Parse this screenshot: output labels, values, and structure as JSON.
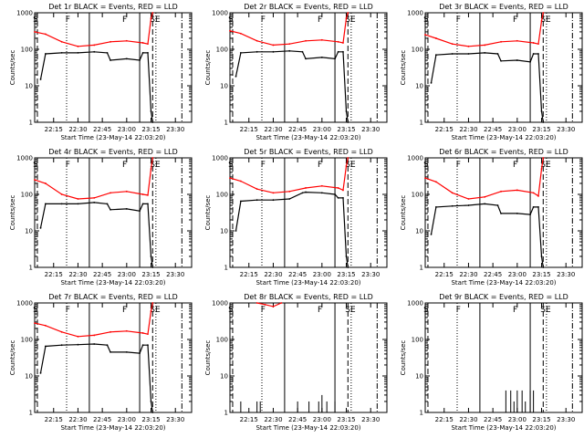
{
  "chart_data": [
    {
      "type": "line",
      "title": "Det 1r BLACK = Events, RED = LLD",
      "xlabel": "Start Time (23-May-14 22:03:20)",
      "ylabel": "Counts/sec",
      "x_ticks": [
        "22:15",
        "22:30",
        "22:45",
        "23:00",
        "23:15",
        "23:30"
      ],
      "y_ticks": [
        "1",
        "10",
        "100",
        "1000"
      ],
      "yscale": "log",
      "ylim": [
        1,
        1000
      ],
      "xlim": [
        "22:03:20",
        "23:40"
      ],
      "markers": [
        "S",
        "F",
        "F",
        "SE"
      ],
      "series": [
        {
          "color": "#ff0000",
          "x": [
            "22:03:20",
            "22:10",
            "22:20",
            "22:30",
            "22:40",
            "22:50",
            "23:00",
            "23:10",
            "23:13",
            "23:15",
            "23:16"
          ],
          "values": [
            300,
            260,
            160,
            120,
            130,
            160,
            170,
            150,
            140,
            700,
            1000
          ]
        },
        {
          "color": "#000000",
          "x": [
            "22:07",
            "22:10",
            "22:20",
            "22:30",
            "22:40",
            "22:48",
            "22:50",
            "23:00",
            "23:08",
            "23:10",
            "23:13",
            "23:15",
            "23:16"
          ],
          "values": [
            15,
            75,
            80,
            80,
            85,
            80,
            50,
            55,
            50,
            80,
            80,
            2,
            1
          ]
        }
      ]
    },
    {
      "type": "line",
      "title": "Det 2r BLACK = Events, RED = LLD",
      "xlabel": "Start Time (23-May-14 22:03:20)",
      "ylabel": "Counts/sec",
      "x_ticks": [
        "22:15",
        "22:30",
        "22:45",
        "23:00",
        "23:15",
        "23:30"
      ],
      "y_ticks": [
        "1",
        "10",
        "100",
        "1000"
      ],
      "yscale": "log",
      "ylim": [
        1,
        1000
      ],
      "xlim": [
        "22:03:20",
        "23:40"
      ],
      "markers": [
        "S",
        "F",
        "F",
        "SE"
      ],
      "series": [
        {
          "color": "#ff0000",
          "x": [
            "22:03:20",
            "22:10",
            "22:20",
            "22:30",
            "22:40",
            "22:50",
            "23:00",
            "23:10",
            "23:13",
            "23:15",
            "23:16"
          ],
          "values": [
            320,
            270,
            170,
            130,
            140,
            170,
            180,
            160,
            150,
            700,
            1000
          ]
        },
        {
          "color": "#000000",
          "x": [
            "22:07",
            "22:10",
            "22:20",
            "22:30",
            "22:40",
            "22:48",
            "22:50",
            "23:00",
            "23:08",
            "23:10",
            "23:13",
            "23:15",
            "23:16"
          ],
          "values": [
            18,
            80,
            85,
            85,
            90,
            85,
            55,
            60,
            55,
            85,
            85,
            2,
            1
          ]
        }
      ]
    },
    {
      "type": "line",
      "title": "Det 3r BLACK = Events, RED = LLD",
      "xlabel": "Start Time (23-May-14 22:03:20)",
      "ylabel": "Counts/sec",
      "x_ticks": [
        "22:15",
        "22:30",
        "22:45",
        "23:00",
        "23:15",
        "23:30"
      ],
      "y_ticks": [
        "1",
        "10",
        "100",
        "1000"
      ],
      "yscale": "log",
      "ylim": [
        1,
        1000
      ],
      "xlim": [
        "22:03:20",
        "23:40"
      ],
      "markers": [
        "S",
        "F",
        "F",
        "SE"
      ],
      "series": [
        {
          "color": "#ff0000",
          "x": [
            "22:03:20",
            "22:10",
            "22:20",
            "22:30",
            "22:40",
            "22:50",
            "23:00",
            "23:10",
            "23:13",
            "23:15",
            "23:16"
          ],
          "values": [
            250,
            200,
            140,
            120,
            130,
            160,
            170,
            150,
            140,
            600,
            1000
          ]
        },
        {
          "color": "#000000",
          "x": [
            "22:07",
            "22:10",
            "22:20",
            "22:30",
            "22:40",
            "22:48",
            "22:50",
            "23:00",
            "23:08",
            "23:10",
            "23:13",
            "23:15",
            "23:16"
          ],
          "values": [
            12,
            70,
            75,
            75,
            80,
            75,
            48,
            50,
            45,
            75,
            75,
            2,
            1
          ]
        }
      ]
    },
    {
      "type": "line",
      "title": "Det 4r BLACK = Events, RED = LLD",
      "xlabel": "Start Time (23-May-14 22:03:20)",
      "ylabel": "Counts/sec",
      "x_ticks": [
        "22:15",
        "22:30",
        "22:45",
        "23:00",
        "23:15",
        "23:30"
      ],
      "y_ticks": [
        "1",
        "10",
        "100",
        "1000"
      ],
      "yscale": "log",
      "ylim": [
        1,
        1000
      ],
      "xlim": [
        "22:03:20",
        "23:40"
      ],
      "markers": [
        "S",
        "F",
        "F",
        "SE"
      ],
      "series": [
        {
          "color": "#ff0000",
          "x": [
            "22:03:20",
            "22:10",
            "22:20",
            "22:30",
            "22:40",
            "22:50",
            "23:00",
            "23:10",
            "23:13",
            "23:15",
            "23:16"
          ],
          "values": [
            250,
            200,
            100,
            75,
            80,
            110,
            120,
            100,
            95,
            500,
            1000
          ]
        },
        {
          "color": "#000000",
          "x": [
            "22:07",
            "22:10",
            "22:20",
            "22:30",
            "22:40",
            "22:48",
            "22:50",
            "23:00",
            "23:08",
            "23:10",
            "23:13",
            "23:15",
            "23:16"
          ],
          "values": [
            12,
            55,
            55,
            55,
            60,
            55,
            38,
            40,
            35,
            55,
            55,
            2,
            1
          ]
        }
      ]
    },
    {
      "type": "line",
      "title": "Det 5r BLACK = Events, RED = LLD",
      "xlabel": "Start Time (23-May-14 22:03:20)",
      "ylabel": "Counts/sec",
      "x_ticks": [
        "22:15",
        "22:30",
        "22:45",
        "23:00",
        "23:15",
        "23:30"
      ],
      "y_ticks": [
        "1",
        "10",
        "100",
        "1000"
      ],
      "yscale": "log",
      "ylim": [
        1,
        1000
      ],
      "xlim": [
        "22:03:20",
        "23:40"
      ],
      "markers": [
        "S",
        "F",
        "F",
        "SE"
      ],
      "series": [
        {
          "color": "#ff0000",
          "x": [
            "22:03:20",
            "22:10",
            "22:20",
            "22:30",
            "22:40",
            "22:50",
            "23:00",
            "23:10",
            "23:13",
            "23:15",
            "23:16"
          ],
          "values": [
            280,
            230,
            140,
            110,
            120,
            150,
            170,
            150,
            130,
            600,
            1000
          ]
        },
        {
          "color": "#000000",
          "x": [
            "22:07",
            "22:10",
            "22:20",
            "22:30",
            "22:40",
            "22:48",
            "22:50",
            "23:00",
            "23:08",
            "23:10",
            "23:13",
            "23:15",
            "23:16"
          ],
          "values": [
            10,
            65,
            70,
            70,
            75,
            110,
            115,
            110,
            100,
            80,
            80,
            2,
            1
          ]
        }
      ]
    },
    {
      "type": "line",
      "title": "Det 6r BLACK = Events, RED = LLD",
      "xlabel": "Start Time (23-May-14 22:03:20)",
      "ylabel": "Counts/sec",
      "x_ticks": [
        "22:15",
        "22:30",
        "22:45",
        "23:00",
        "23:15",
        "23:30"
      ],
      "y_ticks": [
        "1",
        "10",
        "100",
        "1000"
      ],
      "yscale": "log",
      "ylim": [
        1,
        1000
      ],
      "xlim": [
        "22:03:20",
        "23:40"
      ],
      "markers": [
        "S",
        "F",
        "F",
        "SE"
      ],
      "series": [
        {
          "color": "#ff0000",
          "x": [
            "22:03:20",
            "22:10",
            "22:20",
            "22:30",
            "22:40",
            "22:50",
            "23:00",
            "23:10",
            "23:13",
            "23:15",
            "23:16"
          ],
          "values": [
            280,
            220,
            110,
            75,
            85,
            120,
            130,
            110,
            90,
            500,
            1000
          ]
        },
        {
          "color": "#000000",
          "x": [
            "22:07",
            "22:10",
            "22:20",
            "22:30",
            "22:40",
            "22:48",
            "22:50",
            "23:00",
            "23:08",
            "23:10",
            "23:13",
            "23:15",
            "23:16"
          ],
          "values": [
            8,
            45,
            48,
            50,
            55,
            50,
            30,
            30,
            28,
            45,
            45,
            2,
            1
          ]
        }
      ]
    },
    {
      "type": "line",
      "title": "Det 7r BLACK = Events, RED = LLD",
      "xlabel": "Start Time (23-May-14 22:03:20)",
      "ylabel": "Counts/sec",
      "x_ticks": [
        "22:15",
        "22:30",
        "22:45",
        "23:00",
        "23:15",
        "23:30"
      ],
      "y_ticks": [
        "1",
        "10",
        "100",
        "1000"
      ],
      "yscale": "log",
      "ylim": [
        1,
        1000
      ],
      "xlim": [
        "22:03:20",
        "23:40"
      ],
      "markers": [
        "S",
        "F",
        "F",
        "SE"
      ],
      "series": [
        {
          "color": "#ff0000",
          "x": [
            "22:03:20",
            "22:10",
            "22:20",
            "22:30",
            "22:40",
            "22:50",
            "23:00",
            "23:10",
            "23:13",
            "23:15",
            "23:16"
          ],
          "values": [
            280,
            240,
            160,
            120,
            130,
            160,
            170,
            150,
            140,
            600,
            1000
          ]
        },
        {
          "color": "#000000",
          "x": [
            "22:07",
            "22:10",
            "22:20",
            "22:30",
            "22:40",
            "22:48",
            "22:50",
            "23:00",
            "23:08",
            "23:10",
            "23:13",
            "23:15",
            "23:16"
          ],
          "values": [
            12,
            65,
            70,
            72,
            75,
            70,
            45,
            45,
            42,
            70,
            70,
            2,
            1
          ]
        }
      ]
    },
    {
      "type": "line",
      "title": "Det 8r BLACK = Events, RED = LLD",
      "xlabel": "Start Time (23-May-14 22:03:20)",
      "ylabel": "Counts/sec",
      "x_ticks": [
        "22:15",
        "22:30",
        "22:45",
        "23:00",
        "23:15",
        "23:30"
      ],
      "y_ticks": [
        "1",
        "10",
        "100",
        "1000"
      ],
      "yscale": "log",
      "ylim": [
        1,
        1000
      ],
      "xlim": [
        "22:03:20",
        "23:40"
      ],
      "markers": [
        "S",
        "F",
        "F",
        "SE"
      ],
      "series": [
        {
          "color": "#ff0000",
          "x": [
            "22:20",
            "22:25",
            "22:30",
            "22:35"
          ],
          "values": [
            1000,
            900,
            800,
            1000
          ]
        },
        {
          "color": "#000000",
          "spikes": true,
          "x": [
            "22:10",
            "22:20",
            "22:22",
            "22:45",
            "22:52",
            "22:58",
            "23:00",
            "23:03",
            "23:08"
          ],
          "values": [
            2,
            2,
            2,
            2,
            2,
            2,
            3,
            2,
            2
          ]
        }
      ]
    },
    {
      "type": "line",
      "title": "Det 9r BLACK = Events, RED = LLD",
      "xlabel": "Start Time (23-May-14 22:03:20)",
      "ylabel": "Counts/sec",
      "x_ticks": [
        "22:15",
        "22:30",
        "22:45",
        "23:00",
        "23:15",
        "23:30"
      ],
      "y_ticks": [
        "1",
        "10",
        "100",
        "1000"
      ],
      "yscale": "log",
      "ylim": [
        1,
        1000
      ],
      "xlim": [
        "22:03:20",
        "23:40"
      ],
      "markers": [
        "S",
        "F",
        "F",
        "SE"
      ],
      "series": [
        {
          "color": "#000000",
          "spikes": true,
          "x": [
            "22:53",
            "22:56",
            "22:58",
            "23:00",
            "23:03",
            "23:05",
            "23:08",
            "23:10"
          ],
          "values": [
            4,
            4,
            2,
            4,
            4,
            2,
            4,
            4
          ]
        }
      ]
    }
  ]
}
